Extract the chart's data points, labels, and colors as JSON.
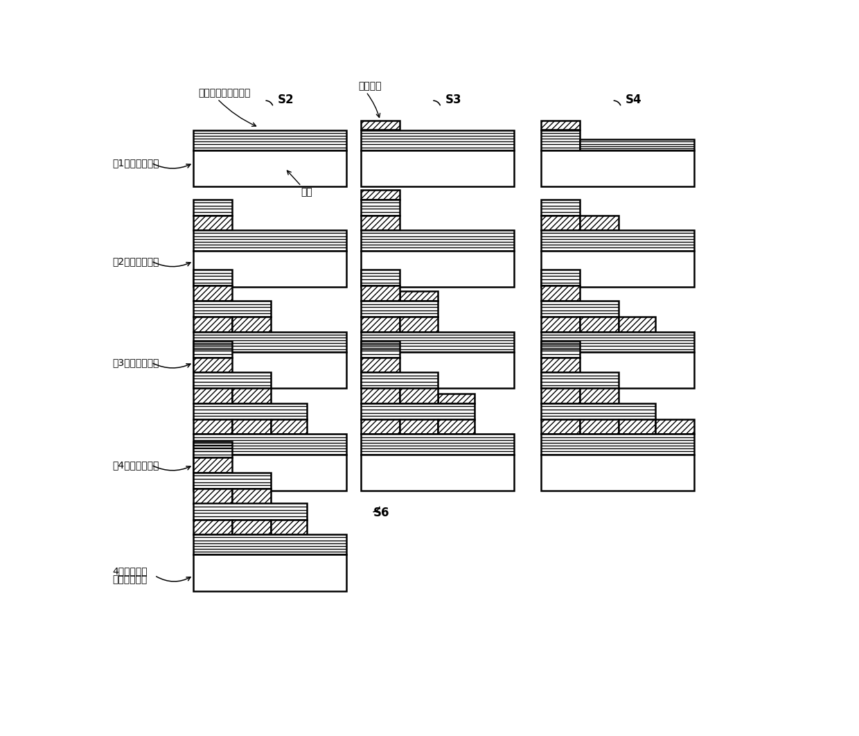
{
  "labels_left": [
    "第1光谱通道制备",
    "第2光谱通道制备",
    "第3光谱通道制备",
    "第4光谱通道制备",
    "4通道像元级\n多光谱滤光片"
  ],
  "labels_top_col1": "S2",
  "labels_top_col2": "S3",
  "labels_top_col3": "S4",
  "label_s6": "S6",
  "ann_filter": "第一宽带通滤光膜堆",
  "ann_substrate": "基底",
  "ann_metal": "金属薄膜",
  "background_color": "#ffffff",
  "lc": "#000000"
}
